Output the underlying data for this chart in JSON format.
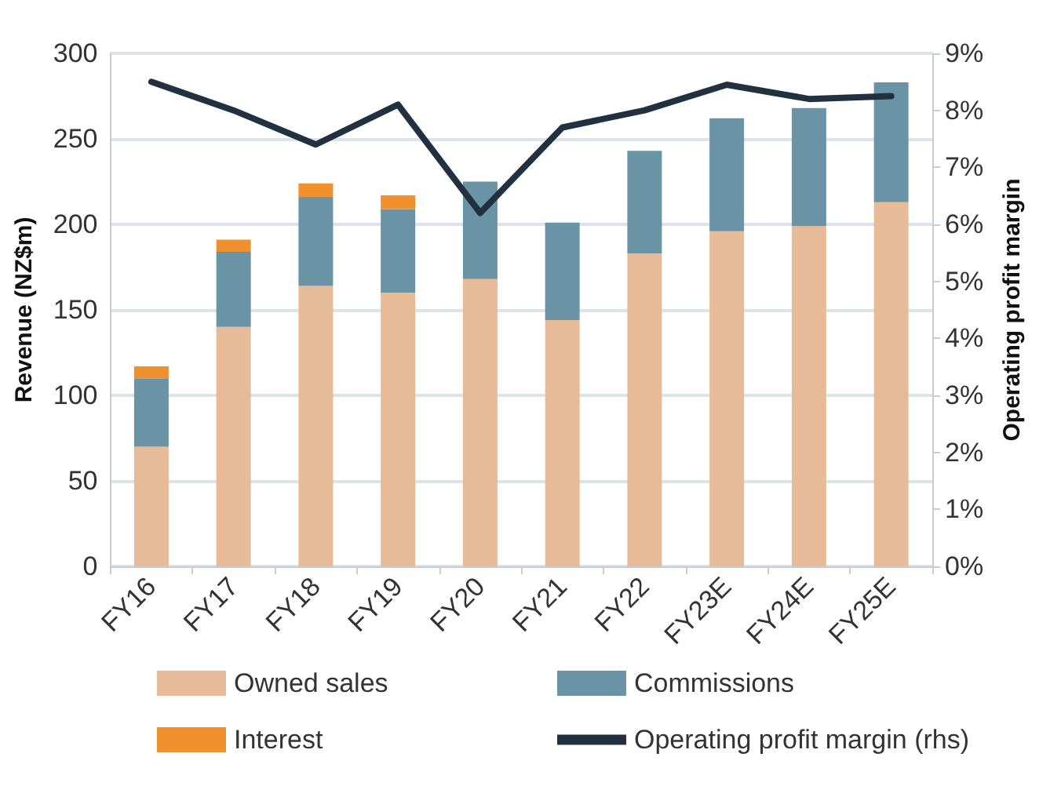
{
  "chart_data": {
    "type": "bar",
    "stacked": true,
    "ylabel": "Revenue (NZ$m)",
    "y2label": "Operating profit margin",
    "categories": [
      "FY16",
      "FY17",
      "FY18",
      "FY19",
      "FY20",
      "FY21",
      "FY22",
      "FY23E",
      "FY24E",
      "FY25E"
    ],
    "series": [
      {
        "name": "Owned sales",
        "color": "#e8bb98",
        "values": [
          70,
          140,
          164,
          160,
          168,
          144,
          183,
          196,
          199,
          213
        ]
      },
      {
        "name": "Commissions",
        "color": "#6b93a6",
        "values": [
          40,
          44,
          52,
          49,
          57,
          57,
          60,
          66,
          69,
          70
        ]
      },
      {
        "name": "Interest",
        "color": "#f0902f",
        "values": [
          7,
          7,
          8,
          8,
          null,
          null,
          null,
          null,
          null,
          null
        ]
      },
      {
        "name": "Operating profit margin (rhs)",
        "type": "line",
        "axis": "y2",
        "color": "#22313f",
        "values": [
          8.5,
          8.0,
          7.4,
          8.1,
          6.2,
          7.7,
          8.0,
          8.45,
          8.2,
          8.25
        ]
      }
    ],
    "ylim": [
      0,
      300
    ],
    "yticks": [
      0,
      50,
      100,
      150,
      200,
      250,
      300
    ],
    "y2lim": [
      0,
      9
    ],
    "y2ticks": [
      {
        "value": 0,
        "label": "0%"
      },
      {
        "value": 1,
        "label": "1%"
      },
      {
        "value": 2,
        "label": "2%"
      },
      {
        "value": 3,
        "label": "3%"
      },
      {
        "value": 4,
        "label": "4%"
      },
      {
        "value": 5,
        "label": "5%"
      },
      {
        "value": 6,
        "label": "6%"
      },
      {
        "value": 7,
        "label": "7%"
      },
      {
        "value": 8,
        "label": "8%"
      },
      {
        "value": 9,
        "label": "9%"
      }
    ],
    "grid": "y",
    "legend": "bottom",
    "marker": "none"
  }
}
